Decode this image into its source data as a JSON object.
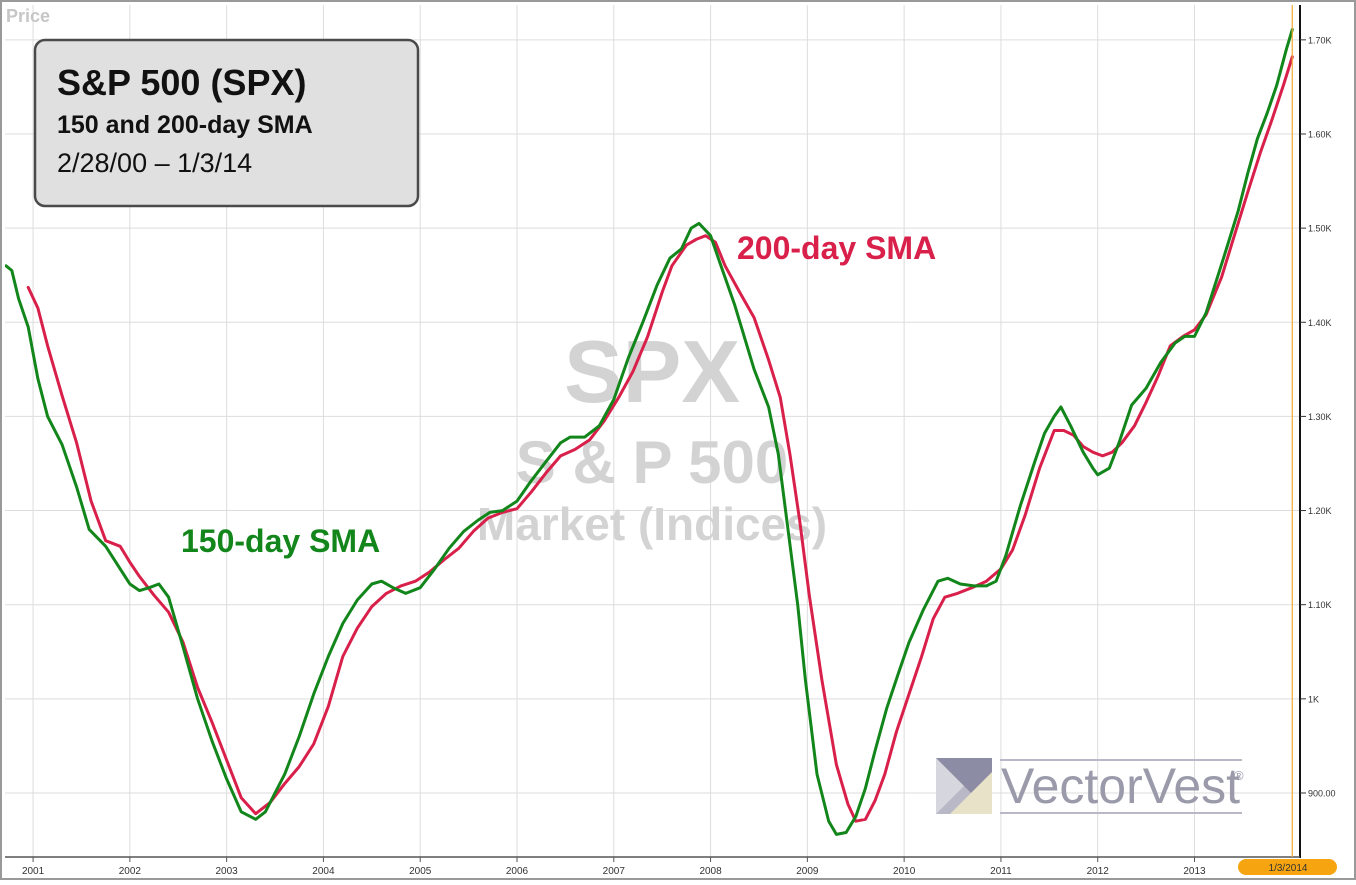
{
  "header": {
    "price_label": "Price"
  },
  "title_box": {
    "title": "S&P 500 (SPX)",
    "subtitle": "150 and 200-day SMA",
    "date_range": "2/28/00 – 1/3/14"
  },
  "watermark": {
    "symbol": "SPX",
    "name": "S & P 500",
    "category": "Market (Indices)",
    "brand": "VectorVest",
    "brand_mark": "®"
  },
  "colors": {
    "sma150": "#12861a",
    "sma200": "#d8204a",
    "grid": "#dddddd",
    "watermark": "#d3d3d3",
    "brand": "#9a9aaa",
    "date_badge": "#f6a511"
  },
  "chart_data": {
    "type": "line",
    "title": "S&P 500 (SPX)",
    "subtitle": "150 and 200-day SMA",
    "date_range": "2/28/00 – 1/3/14",
    "x_ticks": [
      "2001",
      "2002",
      "2003",
      "2004",
      "2005",
      "2006",
      "2007",
      "2008",
      "2009",
      "2010",
      "2011",
      "2012",
      "2013"
    ],
    "y_ticks": [
      {
        "value": 900,
        "label": "900.00"
      },
      {
        "value": 1000,
        "label": "1K"
      },
      {
        "value": 1100,
        "label": "1.10K"
      },
      {
        "value": 1200,
        "label": "1.20K"
      },
      {
        "value": 1300,
        "label": "1.30K"
      },
      {
        "value": 1400,
        "label": "1.40K"
      },
      {
        "value": 1500,
        "label": "1.50K"
      },
      {
        "value": 1600,
        "label": "1.60K"
      },
      {
        "value": 1700,
        "label": "1.70K"
      }
    ],
    "x_range": [
      2000.71,
      2014.09
    ],
    "y_range": [
      832,
      1737
    ],
    "grid": true,
    "current_date_label": "1/3/2014",
    "current_date_x": 2014.01,
    "series": [
      {
        "name": "150-day SMA",
        "color": "#12861a",
        "points": [
          [
            2000.72,
            1460
          ],
          [
            2000.78,
            1455
          ],
          [
            2000.85,
            1425
          ],
          [
            2000.95,
            1395
          ],
          [
            2001.05,
            1340
          ],
          [
            2001.15,
            1300
          ],
          [
            2001.3,
            1270
          ],
          [
            2001.45,
            1225
          ],
          [
            2001.58,
            1180
          ],
          [
            2001.75,
            1162
          ],
          [
            2001.9,
            1138
          ],
          [
            2002.0,
            1122
          ],
          [
            2002.1,
            1115
          ],
          [
            2002.2,
            1118
          ],
          [
            2002.3,
            1122
          ],
          [
            2002.4,
            1108
          ],
          [
            2002.55,
            1055
          ],
          [
            2002.7,
            1000
          ],
          [
            2002.85,
            955
          ],
          [
            2003.0,
            915
          ],
          [
            2003.15,
            880
          ],
          [
            2003.3,
            872
          ],
          [
            2003.4,
            880
          ],
          [
            2003.5,
            900
          ],
          [
            2003.6,
            920
          ],
          [
            2003.75,
            960
          ],
          [
            2003.9,
            1005
          ],
          [
            2004.05,
            1045
          ],
          [
            2004.2,
            1080
          ],
          [
            2004.35,
            1105
          ],
          [
            2004.5,
            1122
          ],
          [
            2004.6,
            1125
          ],
          [
            2004.72,
            1118
          ],
          [
            2004.85,
            1112
          ],
          [
            2005.0,
            1118
          ],
          [
            2005.15,
            1138
          ],
          [
            2005.3,
            1160
          ],
          [
            2005.45,
            1178
          ],
          [
            2005.6,
            1190
          ],
          [
            2005.72,
            1198
          ],
          [
            2005.85,
            1200
          ],
          [
            2006.0,
            1210
          ],
          [
            2006.15,
            1232
          ],
          [
            2006.3,
            1252
          ],
          [
            2006.45,
            1272
          ],
          [
            2006.55,
            1278
          ],
          [
            2006.7,
            1278
          ],
          [
            2006.85,
            1290
          ],
          [
            2007.0,
            1318
          ],
          [
            2007.15,
            1362
          ],
          [
            2007.3,
            1400
          ],
          [
            2007.45,
            1440
          ],
          [
            2007.58,
            1468
          ],
          [
            2007.7,
            1478
          ],
          [
            2007.8,
            1500
          ],
          [
            2007.88,
            1505
          ],
          [
            2008.0,
            1492
          ],
          [
            2008.1,
            1462
          ],
          [
            2008.25,
            1418
          ],
          [
            2008.45,
            1350
          ],
          [
            2008.6,
            1310
          ],
          [
            2008.7,
            1260
          ],
          [
            2008.8,
            1180
          ],
          [
            2008.9,
            1100
          ],
          [
            2008.98,
            1020
          ],
          [
            2009.1,
            920
          ],
          [
            2009.22,
            870
          ],
          [
            2009.3,
            856
          ],
          [
            2009.4,
            858
          ],
          [
            2009.5,
            875
          ],
          [
            2009.6,
            905
          ],
          [
            2009.7,
            945
          ],
          [
            2009.82,
            990
          ],
          [
            2009.95,
            1030
          ],
          [
            2010.05,
            1060
          ],
          [
            2010.2,
            1095
          ],
          [
            2010.35,
            1125
          ],
          [
            2010.45,
            1128
          ],
          [
            2010.58,
            1122
          ],
          [
            2010.72,
            1120
          ],
          [
            2010.85,
            1120
          ],
          [
            2010.95,
            1125
          ],
          [
            2011.05,
            1152
          ],
          [
            2011.2,
            1205
          ],
          [
            2011.35,
            1252
          ],
          [
            2011.45,
            1282
          ],
          [
            2011.55,
            1300
          ],
          [
            2011.62,
            1310
          ],
          [
            2011.72,
            1290
          ],
          [
            2011.85,
            1262
          ],
          [
            2011.95,
            1245
          ],
          [
            2012.0,
            1238
          ],
          [
            2012.12,
            1245
          ],
          [
            2012.22,
            1272
          ],
          [
            2012.35,
            1312
          ],
          [
            2012.5,
            1330
          ],
          [
            2012.65,
            1357
          ],
          [
            2012.8,
            1378
          ],
          [
            2012.9,
            1385
          ],
          [
            2013.0,
            1385
          ],
          [
            2013.12,
            1410
          ],
          [
            2013.3,
            1468
          ],
          [
            2013.45,
            1518
          ],
          [
            2013.55,
            1558
          ],
          [
            2013.65,
            1595
          ],
          [
            2013.75,
            1622
          ],
          [
            2013.85,
            1652
          ],
          [
            2013.95,
            1690
          ],
          [
            2014.01,
            1711
          ]
        ]
      },
      {
        "name": "200-day SMA",
        "color": "#d8204a",
        "points": [
          [
            2000.95,
            1437
          ],
          [
            2001.05,
            1415
          ],
          [
            2001.15,
            1375
          ],
          [
            2001.3,
            1322
          ],
          [
            2001.45,
            1272
          ],
          [
            2001.6,
            1210
          ],
          [
            2001.75,
            1168
          ],
          [
            2001.9,
            1162
          ],
          [
            2002.0,
            1145
          ],
          [
            2002.1,
            1130
          ],
          [
            2002.25,
            1110
          ],
          [
            2002.4,
            1092
          ],
          [
            2002.55,
            1060
          ],
          [
            2002.7,
            1012
          ],
          [
            2002.85,
            975
          ],
          [
            2003.0,
            935
          ],
          [
            2003.15,
            895
          ],
          [
            2003.3,
            878
          ],
          [
            2003.45,
            890
          ],
          [
            2003.6,
            910
          ],
          [
            2003.75,
            928
          ],
          [
            2003.9,
            952
          ],
          [
            2004.05,
            992
          ],
          [
            2004.2,
            1045
          ],
          [
            2004.35,
            1075
          ],
          [
            2004.5,
            1098
          ],
          [
            2004.65,
            1112
          ],
          [
            2004.8,
            1120
          ],
          [
            2004.95,
            1125
          ],
          [
            2005.1,
            1135
          ],
          [
            2005.25,
            1148
          ],
          [
            2005.4,
            1160
          ],
          [
            2005.55,
            1178
          ],
          [
            2005.7,
            1192
          ],
          [
            2005.85,
            1198
          ],
          [
            2006.0,
            1202
          ],
          [
            2006.15,
            1220
          ],
          [
            2006.3,
            1240
          ],
          [
            2006.45,
            1258
          ],
          [
            2006.6,
            1265
          ],
          [
            2006.75,
            1275
          ],
          [
            2006.9,
            1295
          ],
          [
            2007.05,
            1320
          ],
          [
            2007.2,
            1348
          ],
          [
            2007.35,
            1385
          ],
          [
            2007.5,
            1432
          ],
          [
            2007.6,
            1460
          ],
          [
            2007.75,
            1482
          ],
          [
            2007.85,
            1488
          ],
          [
            2007.95,
            1492
          ],
          [
            2008.05,
            1485
          ],
          [
            2008.15,
            1460
          ],
          [
            2008.3,
            1432
          ],
          [
            2008.45,
            1405
          ],
          [
            2008.6,
            1360
          ],
          [
            2008.72,
            1320
          ],
          [
            2008.82,
            1260
          ],
          [
            2008.92,
            1190
          ],
          [
            2009.02,
            1110
          ],
          [
            2009.15,
            1020
          ],
          [
            2009.3,
            930
          ],
          [
            2009.42,
            888
          ],
          [
            2009.5,
            870
          ],
          [
            2009.6,
            872
          ],
          [
            2009.7,
            892
          ],
          [
            2009.8,
            920
          ],
          [
            2009.92,
            965
          ],
          [
            2010.05,
            1005
          ],
          [
            2010.18,
            1045
          ],
          [
            2010.3,
            1085
          ],
          [
            2010.42,
            1108
          ],
          [
            2010.55,
            1112
          ],
          [
            2010.7,
            1118
          ],
          [
            2010.85,
            1125
          ],
          [
            2011.0,
            1138
          ],
          [
            2011.12,
            1158
          ],
          [
            2011.25,
            1195
          ],
          [
            2011.4,
            1245
          ],
          [
            2011.55,
            1285
          ],
          [
            2011.65,
            1285
          ],
          [
            2011.75,
            1280
          ],
          [
            2011.85,
            1268
          ],
          [
            2011.95,
            1262
          ],
          [
            2012.05,
            1258
          ],
          [
            2012.15,
            1262
          ],
          [
            2012.25,
            1272
          ],
          [
            2012.38,
            1290
          ],
          [
            2012.5,
            1315
          ],
          [
            2012.62,
            1342
          ],
          [
            2012.75,
            1375
          ],
          [
            2012.88,
            1385
          ],
          [
            2013.0,
            1392
          ],
          [
            2013.12,
            1408
          ],
          [
            2013.28,
            1448
          ],
          [
            2013.42,
            1495
          ],
          [
            2013.55,
            1538
          ],
          [
            2013.68,
            1580
          ],
          [
            2013.8,
            1615
          ],
          [
            2013.92,
            1652
          ],
          [
            2014.01,
            1682
          ]
        ]
      }
    ],
    "annotations": [
      {
        "text": "150-day SMA",
        "series": "150-day SMA"
      },
      {
        "text": "200-day SMA",
        "series": "200-day SMA"
      }
    ]
  }
}
